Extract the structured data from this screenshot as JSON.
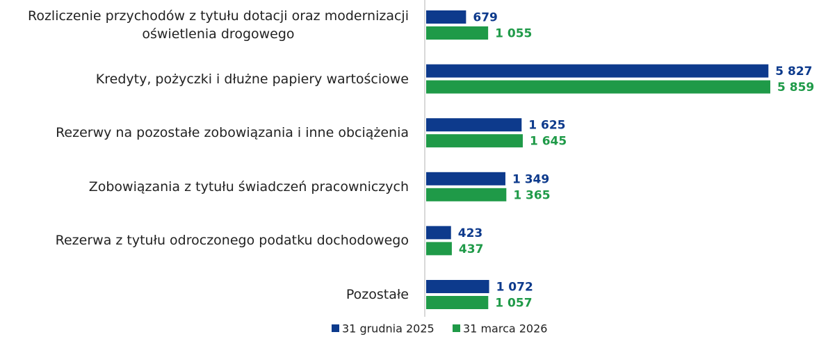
{
  "chart_data": {
    "type": "bar",
    "orientation": "horizontal",
    "categories": [
      "Rozliczenie przychodów z tytułu dotacji oraz modernizacji\noświetlenia drogowego",
      "Kredyty, pożyczki i dłużne papiery wartościowe",
      "Rezerwy na pozostałe zobowiązania i inne obciążenia",
      "Zobowiązania z tytułu świadczeń pracowniczych",
      "Rezerwa z tytułu odroczonego podatku dochodowego",
      "Pozostałe"
    ],
    "series": [
      {
        "name": "31 grudnia 2025",
        "color": "#0d3a8c",
        "values": [
          679,
          5827,
          1625,
          1349,
          423,
          1072
        ],
        "value_labels": [
          "679",
          "5 827",
          "1 625",
          "1 349",
          "423",
          "1 072"
        ]
      },
      {
        "name": "31 marca 2026",
        "color": "#1f9a48",
        "values": [
          1055,
          5859,
          1645,
          1365,
          437,
          1057
        ],
        "value_labels": [
          "1 055",
          "5 859",
          "1 645",
          "1 365",
          "437",
          "1 057"
        ]
      }
    ]
  }
}
